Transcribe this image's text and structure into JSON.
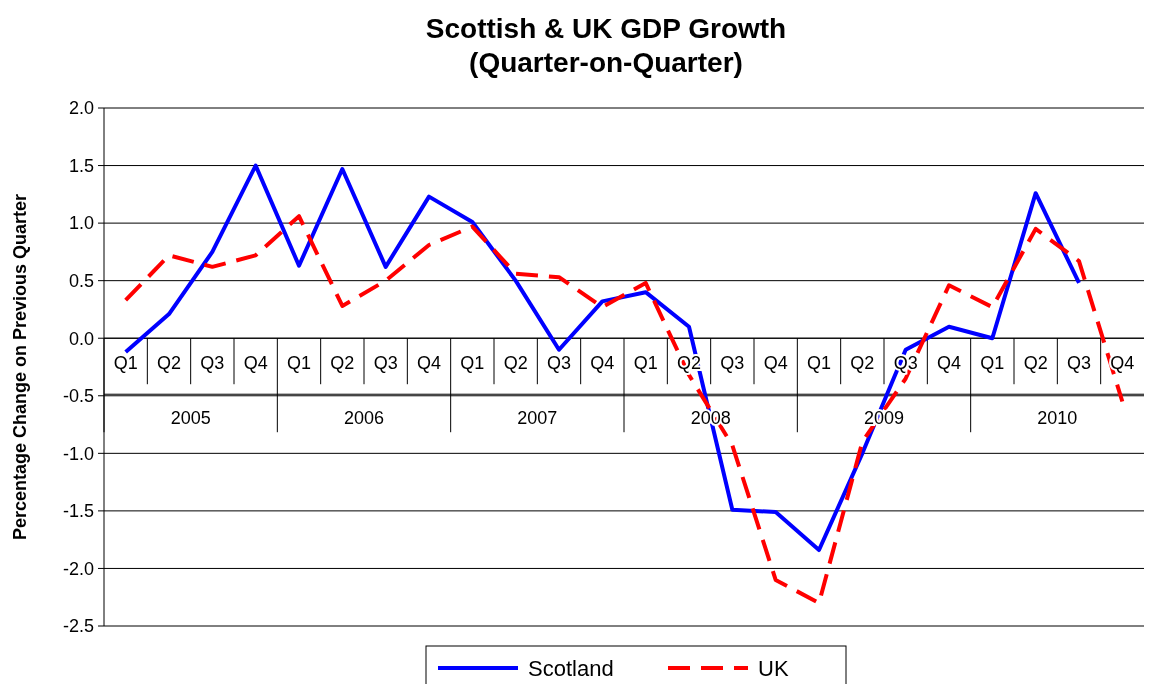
{
  "chart_data": {
    "type": "line",
    "title": "Scottish & UK GDP Growth\n(Quarter-on-Quarter)",
    "ylabel": "Percentage Change on Previous Quarter",
    "categories": [
      "Q1",
      "Q2",
      "Q3",
      "Q4",
      "Q1",
      "Q2",
      "Q3",
      "Q4",
      "Q1",
      "Q2",
      "Q3",
      "Q4",
      "Q1",
      "Q2",
      "Q3",
      "Q4",
      "Q1",
      "Q2",
      "Q3",
      "Q4",
      "Q1",
      "Q2",
      "Q3",
      "Q4"
    ],
    "annotations": [
      "2005",
      "2006",
      "2007",
      "2008",
      "2009",
      "2010"
    ],
    "series": [
      {
        "name": "Scotland",
        "color": "#0000ff",
        "line_style": "solid",
        "values": [
          -0.12,
          0.21,
          0.75,
          1.5,
          0.63,
          1.47,
          0.62,
          1.23,
          1.01,
          0.5,
          -0.1,
          0.32,
          0.4,
          0.1,
          -1.49,
          -1.51,
          -1.84,
          -1.0,
          -0.1,
          0.1,
          0.0,
          1.26,
          0.48,
          null
        ]
      },
      {
        "name": "UK",
        "color": "#ff0000",
        "line_style": "dashed",
        "values": [
          0.33,
          0.72,
          0.62,
          0.72,
          1.06,
          0.28,
          0.5,
          0.81,
          0.97,
          0.56,
          0.53,
          0.27,
          0.48,
          -0.32,
          -0.93,
          -2.1,
          -2.3,
          -0.9,
          -0.35,
          0.46,
          0.27,
          0.95,
          0.67,
          -0.55
        ]
      }
    ],
    "ylim": [
      -2.5,
      2.0
    ],
    "yticks": [
      {
        "value": 2.0,
        "label": "2.0"
      },
      {
        "value": 1.5,
        "label": "1.5"
      },
      {
        "value": 1.0,
        "label": "1.0"
      },
      {
        "value": 0.5,
        "label": "0.5"
      },
      {
        "value": 0.0,
        "label": "0.0"
      },
      {
        "value": -0.5,
        "label": "-0.5"
      },
      {
        "value": -1.0,
        "label": "-1.0"
      },
      {
        "value": -1.5,
        "label": "-1.5"
      },
      {
        "value": -2.0,
        "label": "-2.0"
      },
      {
        "value": -2.5,
        "label": "-2.5"
      }
    ],
    "grid": "y",
    "legend": "bottom"
  }
}
